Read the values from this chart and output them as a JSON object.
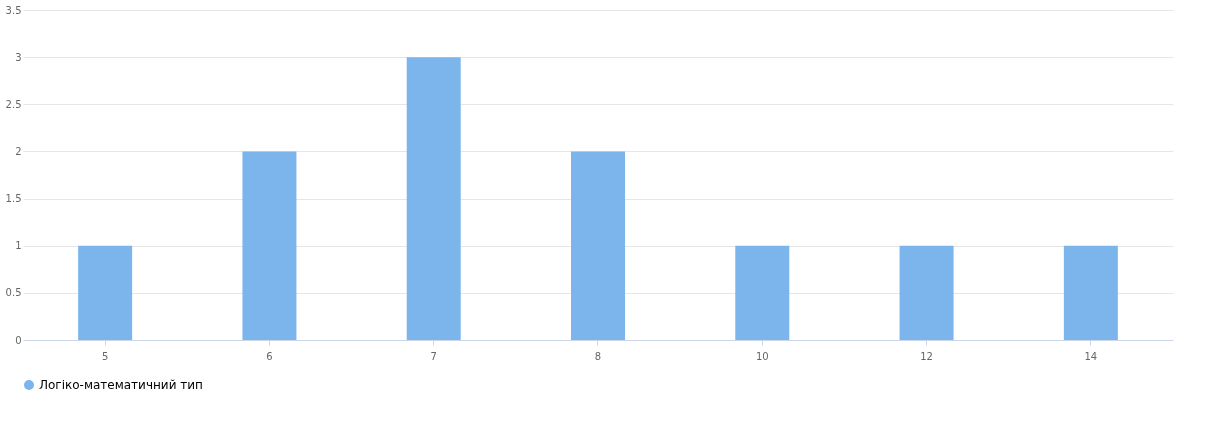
{
  "chart_data": {
    "type": "bar",
    "categories": [
      "5",
      "6",
      "7",
      "8",
      "10",
      "12",
      "14"
    ],
    "series": [
      {
        "name": "Логіко-математичний тип",
        "color": "#7cb5ec",
        "values": [
          1,
          2,
          3,
          2,
          1,
          1,
          1
        ]
      }
    ],
    "ylim": [
      0,
      3.5
    ],
    "yticks": [
      0,
      0.5,
      1,
      1.5,
      2,
      2.5,
      3,
      3.5
    ],
    "grid": "y",
    "legend": "bottom"
  }
}
